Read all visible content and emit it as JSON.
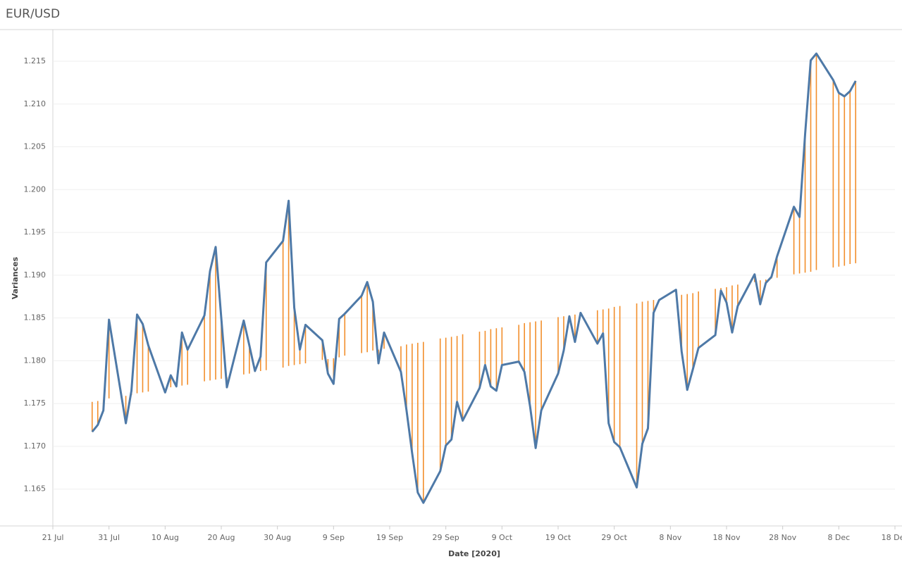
{
  "chart_data": {
    "type": "line",
    "title": "EUR/USD",
    "x_label": "Date [2020]",
    "y_label": "Variances",
    "x": [
      "2020-07-28",
      "2020-07-29",
      "2020-07-30",
      "2020-07-31",
      "2020-08-03",
      "2020-08-04",
      "2020-08-05",
      "2020-08-06",
      "2020-08-07",
      "2020-08-10",
      "2020-08-11",
      "2020-08-12",
      "2020-08-13",
      "2020-08-14",
      "2020-08-17",
      "2020-08-18",
      "2020-08-19",
      "2020-08-20",
      "2020-08-21",
      "2020-08-24",
      "2020-08-25",
      "2020-08-26",
      "2020-08-27",
      "2020-08-28",
      "2020-08-31",
      "2020-09-01",
      "2020-09-02",
      "2020-09-03",
      "2020-09-04",
      "2020-09-07",
      "2020-09-08",
      "2020-09-09",
      "2020-09-10",
      "2020-09-11",
      "2020-09-14",
      "2020-09-15",
      "2020-09-16",
      "2020-09-17",
      "2020-09-18",
      "2020-09-21",
      "2020-09-22",
      "2020-09-23",
      "2020-09-24",
      "2020-09-25",
      "2020-09-28",
      "2020-09-29",
      "2020-09-30",
      "2020-10-01",
      "2020-10-02",
      "2020-10-05",
      "2020-10-06",
      "2020-10-07",
      "2020-10-08",
      "2020-10-09",
      "2020-10-12",
      "2020-10-13",
      "2020-10-14",
      "2020-10-15",
      "2020-10-16",
      "2020-10-19",
      "2020-10-20",
      "2020-10-21",
      "2020-10-22",
      "2020-10-23",
      "2020-10-26",
      "2020-10-27",
      "2020-10-28",
      "2020-10-29",
      "2020-10-30",
      "2020-11-02",
      "2020-11-03",
      "2020-11-04",
      "2020-11-05",
      "2020-11-06",
      "2020-11-09",
      "2020-11-10",
      "2020-11-11",
      "2020-11-12",
      "2020-11-13",
      "2020-11-16",
      "2020-11-17",
      "2020-11-18",
      "2020-11-19",
      "2020-11-20",
      "2020-11-23",
      "2020-11-24",
      "2020-11-25",
      "2020-11-26",
      "2020-11-27",
      "2020-11-30",
      "2020-12-01",
      "2020-12-02",
      "2020-12-03",
      "2020-12-04",
      "2020-12-07",
      "2020-12-08",
      "2020-12-09",
      "2020-12-10",
      "2020-12-11"
    ],
    "series": [
      {
        "color": "#4e79a7",
        "values": [
          1.1717,
          1.1725,
          1.1742,
          1.1848,
          1.1727,
          1.1765,
          1.1854,
          1.1843,
          1.1818,
          1.1763,
          1.1783,
          1.177,
          1.1833,
          1.1813,
          1.1853,
          1.1905,
          1.1933,
          1.185,
          1.1769,
          1.1847,
          1.1818,
          1.1788,
          1.1805,
          1.1915,
          1.194,
          1.1987,
          1.1862,
          1.1813,
          1.1842,
          1.1824,
          1.1785,
          1.1773,
          1.1849,
          1.1855,
          1.1876,
          1.1892,
          1.1869,
          1.1797,
          1.1833,
          1.1787,
          1.1742,
          1.1692,
          1.1646,
          1.1634,
          1.1671,
          1.1701,
          1.1708,
          1.1752,
          1.173,
          1.1768,
          1.1795,
          1.177,
          1.1765,
          1.1795,
          1.1799,
          1.1787,
          1.1747,
          1.1698,
          1.1742,
          1.1785,
          1.1812,
          1.1852,
          1.1822,
          1.1856,
          1.182,
          1.1832,
          1.1727,
          1.1705,
          1.1699,
          1.1652,
          1.1703,
          1.1721,
          1.1856,
          1.1871,
          1.1883,
          1.1811,
          1.1766,
          1.179,
          1.1815,
          1.183,
          1.1882,
          1.1868,
          1.1833,
          1.1864,
          1.1901,
          1.1866,
          1.1891,
          1.1898,
          1.1922,
          1.198,
          1.1968,
          1.2065,
          1.2151,
          1.2159,
          1.2128,
          1.2113,
          1.2109,
          1.2115,
          1.2127
        ]
      }
    ],
    "trend": {
      "color": "#f28e2b",
      "values": [
        1.1752,
        1.1753,
        1.1754,
        1.1756,
        1.1759,
        1.176,
        1.1762,
        1.1763,
        1.1764,
        1.1767,
        1.1769,
        1.177,
        1.1771,
        1.1772,
        1.1776,
        1.1777,
        1.1778,
        1.1779,
        1.1781,
        1.1784,
        1.1785,
        1.1787,
        1.1788,
        1.1789,
        1.1792,
        1.1794,
        1.1795,
        1.1796,
        1.1797,
        1.1801,
        1.1802,
        1.1803,
        1.1804,
        1.1806,
        1.1809,
        1.181,
        1.1812,
        1.1813,
        1.1814,
        1.1817,
        1.1819,
        1.182,
        1.1821,
        1.1822,
        1.1826,
        1.1827,
        1.1828,
        1.1829,
        1.1831,
        1.1834,
        1.1835,
        1.1837,
        1.1838,
        1.1839,
        1.1842,
        1.1844,
        1.1845,
        1.1846,
        1.1847,
        1.1851,
        1.1852,
        1.1853,
        1.1854,
        1.1856,
        1.1859,
        1.186,
        1.1861,
        1.1863,
        1.1864,
        1.1867,
        1.1869,
        1.187,
        1.1871,
        1.1872,
        1.1876,
        1.1877,
        1.1878,
        1.1879,
        1.1881,
        1.1884,
        1.1885,
        1.1886,
        1.1888,
        1.1889,
        1.1892,
        1.1894,
        1.1895,
        1.1896,
        1.1897,
        1.1901,
        1.1902,
        1.1903,
        1.1904,
        1.1906,
        1.1909,
        1.191,
        1.1911,
        1.1913,
        1.1914
      ]
    },
    "xlim": [
      "2020-07-21",
      "2020-12-18"
    ],
    "xticks": [
      {
        "value": "2020-07-21",
        "label": "21 Jul"
      },
      {
        "value": "2020-07-31",
        "label": "31 Jul"
      },
      {
        "value": "2020-08-10",
        "label": "10 Aug"
      },
      {
        "value": "2020-08-20",
        "label": "20 Aug"
      },
      {
        "value": "2020-08-30",
        "label": "30 Aug"
      },
      {
        "value": "2020-09-09",
        "label": "9 Sep"
      },
      {
        "value": "2020-09-19",
        "label": "19 Sep"
      },
      {
        "value": "2020-09-29",
        "label": "29 Sep"
      },
      {
        "value": "2020-10-09",
        "label": "9 Oct"
      },
      {
        "value": "2020-10-19",
        "label": "19 Oct"
      },
      {
        "value": "2020-10-29",
        "label": "29 Oct"
      },
      {
        "value": "2020-11-08",
        "label": "8 Nov"
      },
      {
        "value": "2020-11-18",
        "label": "18 Nov"
      },
      {
        "value": "2020-11-28",
        "label": "28 Nov"
      },
      {
        "value": "2020-12-08",
        "label": "8 Dec"
      },
      {
        "value": "2020-12-18",
        "label": "18 Dec"
      }
    ],
    "ylim": [
      1.1607,
      1.2187
    ],
    "yticks": [
      1.165,
      {
        "value": 1.17,
        "label": "1.170"
      },
      1.175,
      {
        "value": 1.18,
        "label": "1.180"
      },
      1.185,
      {
        "value": 1.19,
        "label": "1.190"
      },
      1.195,
      {
        "value": 1.2,
        "label": "1.200"
      },
      1.205,
      {
        "value": 1.21,
        "label": "1.210"
      },
      1.215
    ],
    "grid": true
  }
}
